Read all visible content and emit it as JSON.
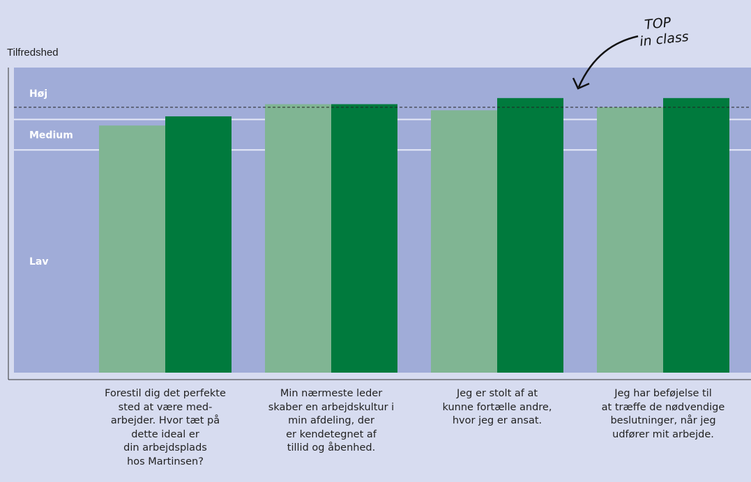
{
  "chart_data": {
    "type": "bar",
    "ylabel": "Tilfredshed",
    "bands": [
      {
        "label": "Høj",
        "from": 83,
        "to": 100
      },
      {
        "label": "Medium",
        "from": 73,
        "to": 83
      },
      {
        "label": "Lav",
        "from": 0,
        "to": 73
      }
    ],
    "reference_line": 87,
    "ylim": [
      0,
      100
    ],
    "categories": [
      "Forestil dig det perfekte sted at være med-arbejder. Hvor tæt på dette ideal er din arbejdsplads hos Martinsen?",
      "Min nærmeste leder skaber en arbejdskultur i min afdeling, der er kendetegnet af tillid og åbenhed.",
      "Jeg er stolt af at kunne fortælle andre, hvor jeg er ansat.",
      "Jeg har beføjelse til at træffe de nødvendige beslutninger, når jeg udfører mit arbejde."
    ],
    "series": [
      {
        "values": [
          81,
          88,
          86,
          87
        ],
        "color": "#80b593"
      },
      {
        "values": [
          84,
          88,
          90,
          90
        ],
        "color": "#007a3d"
      }
    ],
    "annotation": {
      "line1": "TOP",
      "line2": "in class"
    }
  }
}
